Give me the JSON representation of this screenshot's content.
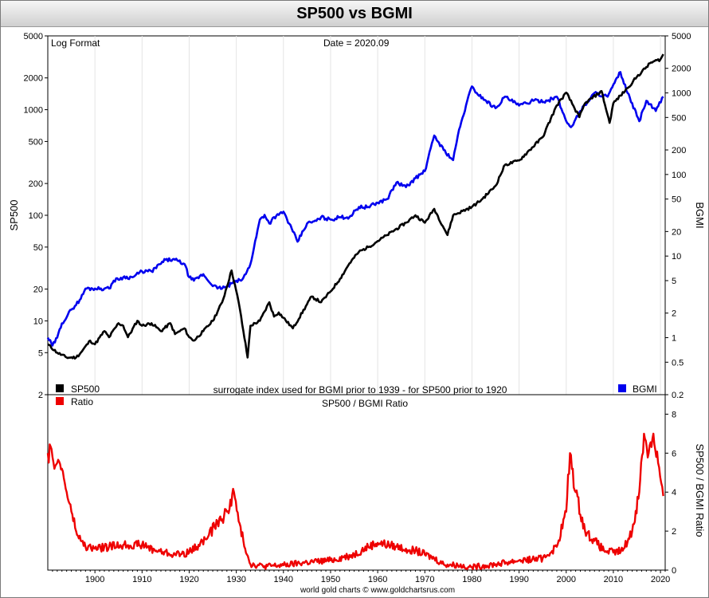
{
  "chart_data": [
    {
      "type": "line",
      "title": "SP500 vs BGMI",
      "annotations": [
        "Log Format",
        "Date = 2020.09",
        "surrogate index used for BGMI prior to 1939 - for SP500 prior to 1920"
      ],
      "ylabel": "SP500",
      "y2label": "BGMI",
      "yscale": "log",
      "xlim": [
        1890,
        2021
      ],
      "ylim": [
        2,
        5000
      ],
      "y2lim": [
        0.2,
        5000
      ],
      "yticks": [
        "5000",
        "2000",
        "1000",
        "500",
        "200",
        "100",
        "50",
        "20",
        "10",
        "5",
        "2"
      ],
      "y2ticks": [
        "5000",
        "2000",
        "1000",
        "500",
        "200",
        "100",
        "50",
        "20",
        "10",
        "5",
        "2",
        "1",
        "0.5",
        "0.2"
      ],
      "legend": [
        "SP500",
        "BGMI"
      ],
      "legend_position": "bottom",
      "colors": {
        "SP500": "#000000",
        "BGMI": "#0000ee"
      },
      "series": [
        {
          "name": "SP500",
          "axis": "left",
          "x": [
            1890,
            1892,
            1894,
            1896,
            1897,
            1899,
            1900,
            1902,
            1903,
            1905,
            1906,
            1907,
            1909,
            1910,
            1912,
            1914,
            1916,
            1917,
            1919,
            1920,
            1921,
            1923,
            1925,
            1927,
            1929,
            1929.7,
            1930.5,
            1931.5,
            1932.4,
            1933,
            1935,
            1937,
            1938,
            1939,
            1942,
            1946,
            1948,
            1950,
            1952,
            1954,
            1956,
            1958,
            1960,
            1962,
            1966,
            1968,
            1970,
            1972,
            1974.8,
            1976,
            1980,
            1982,
            1985,
            1987,
            1990,
            1995,
            1998,
            2000,
            2002.8,
            2004,
            2007.5,
            2009.2,
            2010,
            2013,
            2015,
            2018,
            2020,
            2020.6
          ],
          "values": [
            6,
            5,
            4.5,
            4.5,
            5,
            6.5,
            6,
            8,
            7,
            9.5,
            9,
            7,
            10,
            9,
            9.5,
            8,
            9.5,
            7.5,
            8.5,
            7,
            6.5,
            8,
            10,
            15,
            30,
            22,
            15,
            8,
            4.5,
            9,
            10,
            15,
            11,
            12,
            8.5,
            17,
            15,
            19,
            25,
            35,
            45,
            50,
            57,
            65,
            85,
            100,
            85,
            115,
            65,
            100,
            120,
            140,
            190,
            300,
            330,
            550,
            1100,
            1450,
            850,
            1150,
            1500,
            750,
            1150,
            1600,
            2050,
            2800,
            3000,
            3350
          ]
        },
        {
          "name": "BGMI",
          "axis": "right",
          "x": [
            1890,
            1891,
            1892,
            1893,
            1895,
            1897,
            1898,
            1900,
            1902,
            1903,
            1904,
            1906,
            1908,
            1910,
            1912,
            1915,
            1917,
            1919,
            1920,
            1921,
            1923,
            1924,
            1926,
            1928,
            1930,
            1931,
            1932,
            1933,
            1935,
            1936,
            1937,
            1938,
            1939,
            1940,
            1942,
            1943,
            1945,
            1947,
            1948,
            1950,
            1952,
            1954,
            1956,
            1958,
            1960,
            1962,
            1964,
            1966,
            1968,
            1970,
            1972,
            1974,
            1976,
            1977,
            1979,
            1980,
            1981,
            1983,
            1985,
            1987,
            1990,
            1993,
            1996,
            1998,
            2000,
            2001,
            2003,
            2006,
            2008.8,
            2011.5,
            2013,
            2015.5,
            2017,
            2019,
            2020.6
          ],
          "values": [
            1,
            0.8,
            1,
            1.5,
            2.2,
            3,
            4,
            4,
            4,
            4,
            5,
            5.5,
            5.5,
            6.5,
            6.5,
            9,
            9,
            8,
            5.5,
            5,
            6,
            5,
            4,
            4.2,
            5,
            5,
            6,
            8,
            28,
            32,
            25,
            30,
            32,
            35,
            20,
            15,
            25,
            27,
            30,
            28,
            30,
            30,
            40,
            40,
            45,
            50,
            80,
            70,
            90,
            110,
            300,
            200,
            150,
            300,
            800,
            1200,
            1000,
            800,
            650,
            900,
            700,
            800,
            800,
            900,
            450,
            380,
            600,
            1000,
            900,
            1800,
            1000,
            450,
            800,
            600,
            900
          ]
        }
      ]
    },
    {
      "type": "line",
      "title": "SP500 / BGMI Ratio",
      "ylabel": "SP500 / BGMI Ratio",
      "xlim": [
        1890,
        2021
      ],
      "ylim": [
        0,
        9
      ],
      "yticks": [
        "8",
        "6",
        "4",
        "2",
        "0"
      ],
      "xticks": [
        "1900",
        "1910",
        "1920",
        "1930",
        "1940",
        "1950",
        "1960",
        "1970",
        "1980",
        "1990",
        "2000",
        "2010",
        "2020"
      ],
      "legend": [
        "Ratio"
      ],
      "legend_position": "top-left",
      "colors": {
        "Ratio": "#ee0000"
      },
      "series": [
        {
          "name": "Ratio",
          "x": [
            1890,
            1891,
            1892,
            1893,
            1894,
            1895,
            1896,
            1897,
            1898,
            1900,
            1903,
            1906,
            1910,
            1913,
            1917,
            1920,
            1922,
            1924,
            1926,
            1927,
            1928,
            1929.5,
            1930.5,
            1931.5,
            1933,
            1936,
            1940,
            1945,
            1950,
            1955,
            1958,
            1960,
            1964,
            1968,
            1972,
            1974,
            1977,
            1980,
            1985,
            1990,
            1995,
            1998,
            2000,
            2000.8,
            2002,
            2004,
            2006,
            2008,
            2010,
            2012,
            2014,
            2015.5,
            2016.5,
            2017.5,
            2018.5,
            2019.5,
            2020.6
          ],
          "values": [
            6,
            5.8,
            5.5,
            5.2,
            4,
            3,
            2,
            1.5,
            1.2,
            1.1,
            1.2,
            1.3,
            1.3,
            1,
            0.8,
            0.9,
            1.3,
            1.7,
            2.5,
            2.6,
            3,
            4,
            2.5,
            1.5,
            0.3,
            0.2,
            0.25,
            0.4,
            0.5,
            0.8,
            1.2,
            1.4,
            1.2,
            1,
            0.6,
            0.3,
            0.25,
            0.15,
            0.3,
            0.5,
            0.6,
            1.2,
            3,
            6,
            4,
            2,
            1.5,
            1,
            0.9,
            1,
            2,
            4,
            7,
            6,
            7,
            5.5,
            3.8
          ]
        }
      ]
    }
  ],
  "footer": "world gold charts © www.goldchartsrus.com"
}
